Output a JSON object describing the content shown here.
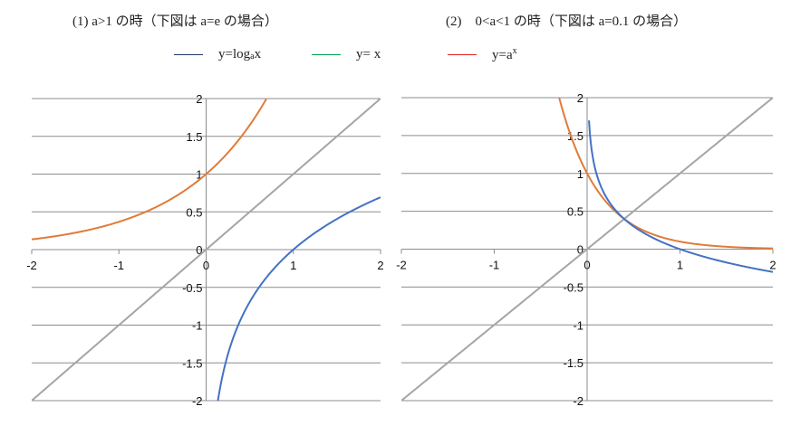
{
  "titles": {
    "left": "(1)  a>1 の時（下図は a=e の場合）",
    "right": "(2)　0<a<1  の時（下図は a=0.1 の場合）"
  },
  "legend": [
    {
      "name": "log",
      "label_main": "y=log",
      "label_sub": "a",
      "label_tail": "x",
      "color": "#1f3864"
    },
    {
      "name": "identity",
      "label": "y= x",
      "color": "#00a050"
    },
    {
      "name": "exp",
      "label_main": "y=a",
      "label_sup": "x",
      "color": "#e02020"
    }
  ],
  "colors": {
    "grid": "#8c8c8c",
    "exp_curve": "#e07b39",
    "log_curve": "#4472c4",
    "identity_line": "#a5a5a5"
  },
  "chart_data": [
    {
      "type": "line",
      "title": "(1) a>1 の時（下図は a=e の場合）",
      "xlim": [
        -2,
        2
      ],
      "ylim": [
        -2,
        2
      ],
      "x_ticks": [
        "-2",
        "-1",
        "0",
        "1",
        "2"
      ],
      "y_ticks": [
        "2",
        "1.5",
        "1",
        "0.5",
        "0",
        "-0.5",
        "-1",
        "-1.5",
        "-2"
      ],
      "grid": "horizontal",
      "a": 2.718,
      "series": [
        {
          "name": "y=a^x",
          "color": "#e07b39",
          "x": [
            -2,
            -1.5,
            -1,
            -0.5,
            0,
            0.25,
            0.5,
            0.69
          ],
          "y": [
            0.14,
            0.22,
            0.37,
            0.61,
            1.0,
            1.28,
            1.65,
            2.0
          ]
        },
        {
          "name": "y=x",
          "color": "#a5a5a5",
          "x": [
            -2,
            2
          ],
          "y": [
            -2,
            2
          ]
        },
        {
          "name": "y=log_a x",
          "color": "#4472c4",
          "x": [
            0.135,
            0.2,
            0.3,
            0.5,
            0.75,
            1,
            1.5,
            2
          ],
          "y": [
            -2.0,
            -1.61,
            -1.2,
            -0.69,
            -0.29,
            0,
            0.41,
            0.69
          ]
        }
      ]
    },
    {
      "type": "line",
      "title": "(2) 0<a<1 の時（下図は a=0.1 の場合）",
      "xlim": [
        -2,
        2
      ],
      "ylim": [
        -2,
        2
      ],
      "x_ticks": [
        "-2",
        "-1",
        "0",
        "1",
        "2"
      ],
      "y_ticks": [
        "2",
        "1.5",
        "1",
        "0.5",
        "0",
        "-0.5",
        "-1",
        "-1.5",
        "-2"
      ],
      "grid": "horizontal",
      "a": 0.1,
      "series": [
        {
          "name": "y=a^x",
          "color": "#e07b39",
          "x": [
            -0.3,
            -0.2,
            -0.1,
            0,
            0.25,
            0.5,
            1,
            1.5,
            2
          ],
          "y": [
            2.0,
            1.58,
            1.26,
            1.0,
            0.56,
            0.32,
            0.1,
            0.03,
            0.01
          ]
        },
        {
          "name": "y=x",
          "color": "#a5a5a5",
          "x": [
            -2,
            2
          ],
          "y": [
            -2,
            2
          ]
        },
        {
          "name": "y=log_a x",
          "color": "#4472c4",
          "x": [
            0.02,
            0.05,
            0.1,
            0.2,
            0.4,
            0.6,
            1,
            1.5,
            2
          ],
          "y": [
            1.7,
            1.3,
            1.0,
            0.7,
            0.4,
            0.22,
            0,
            -0.18,
            -0.3
          ]
        }
      ]
    }
  ]
}
